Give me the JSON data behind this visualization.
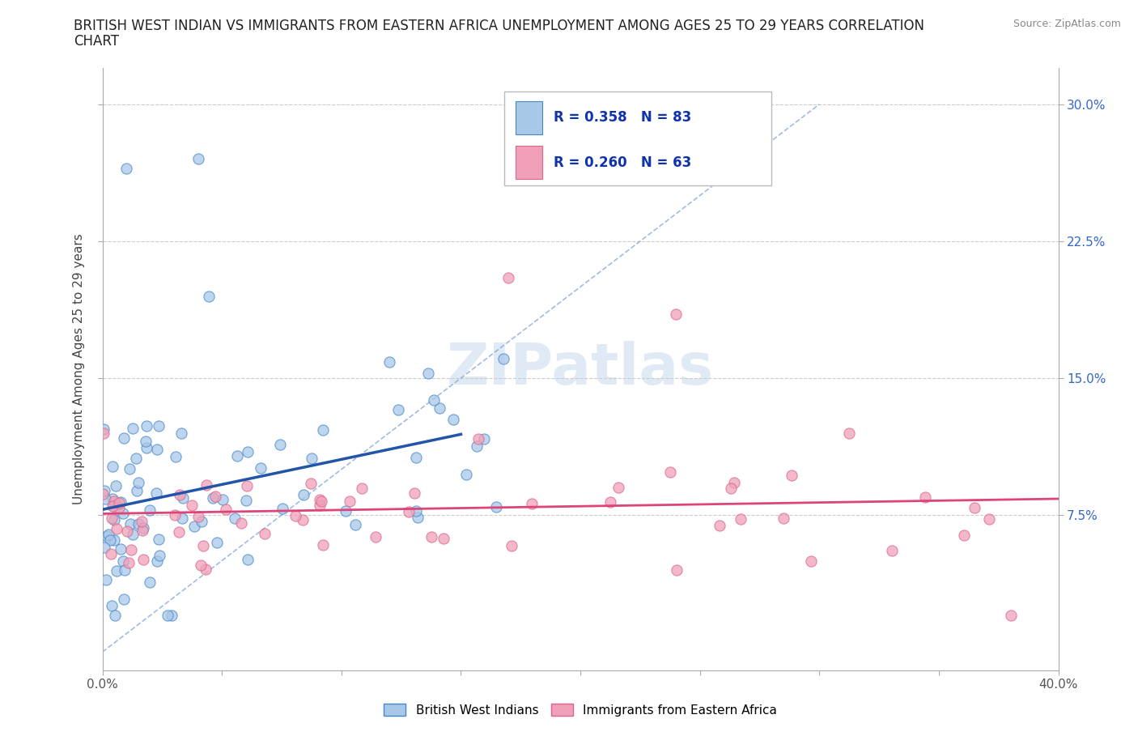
{
  "title_line1": "BRITISH WEST INDIAN VS IMMIGRANTS FROM EASTERN AFRICA UNEMPLOYMENT AMONG AGES 25 TO 29 YEARS CORRELATION",
  "title_line2": "CHART",
  "source_text": "Source: ZipAtlas.com",
  "ylabel": "Unemployment Among Ages 25 to 29 years",
  "xlim": [
    0.0,
    0.4
  ],
  "ylim": [
    -0.01,
    0.32
  ],
  "y_ticks": [
    0.075,
    0.15,
    0.225,
    0.3
  ],
  "y_tick_labels_right": [
    "7.5%",
    "15.0%",
    "22.5%",
    "30.0%"
  ],
  "watermark": "ZIPatlas",
  "blue_fill": "#a8c8e8",
  "blue_edge": "#4488cc",
  "pink_fill": "#f0a0b8",
  "pink_edge": "#dd6688",
  "blue_line_color": "#2255aa",
  "pink_line_color": "#dd4477",
  "diag_color": "#88aadd",
  "grid_color": "#cccccc",
  "R_blue": 0.358,
  "N_blue": 83,
  "R_pink": 0.26,
  "N_pink": 63,
  "legend_label_blue": "British West Indians",
  "legend_label_pink": "Immigrants from Eastern Africa"
}
